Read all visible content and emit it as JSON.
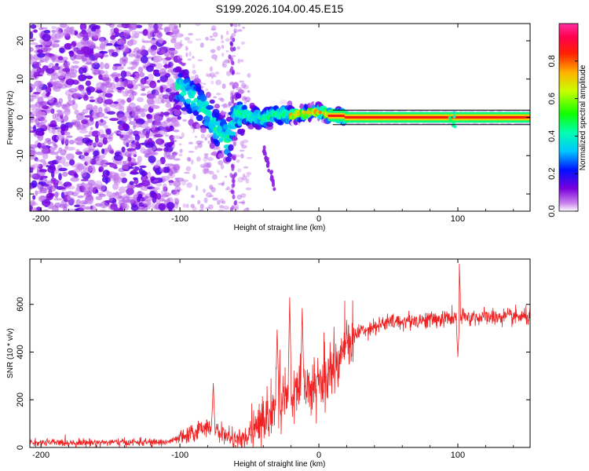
{
  "title": "S199.2026.104.00.45.E15",
  "chart_data": [
    {
      "type": "heatmap",
      "name": "spectrogram",
      "xlabel": "Height of straight line (km)",
      "ylabel": "Frequency (Hz)",
      "xlim": [
        -208,
        152
      ],
      "ylim": [
        -24.5,
        24.5
      ],
      "xticks": [
        -200,
        -100,
        0,
        100
      ],
      "yticks": [
        -20,
        -10,
        0,
        10,
        20
      ],
      "colorbar": {
        "label": "Normalized spectral amplitude",
        "range": [
          0,
          1
        ],
        "ticks": [
          "0.0",
          "0.2",
          "0.4",
          "0.6",
          "0.8"
        ],
        "tick_values": [
          0.0,
          0.2,
          0.4,
          0.6,
          0.8
        ]
      },
      "ridge": [
        {
          "x": -100,
          "y": 8
        },
        {
          "x": -90,
          "y": 5
        },
        {
          "x": -80,
          "y": 1
        },
        {
          "x": -72,
          "y": -4
        },
        {
          "x": -65,
          "y": -6
        },
        {
          "x": -60,
          "y": 1
        },
        {
          "x": -50,
          "y": 0.5
        },
        {
          "x": -40,
          "y": -0.5
        },
        {
          "x": -30,
          "y": 1
        },
        {
          "x": -20,
          "y": 0.5
        },
        {
          "x": -10,
          "y": 1
        },
        {
          "x": 0,
          "y": 1.5
        },
        {
          "x": 10,
          "y": 0.5
        },
        {
          "x": 20,
          "y": 0
        },
        {
          "x": 150,
          "y": 0
        }
      ]
    },
    {
      "type": "line",
      "name": "snr",
      "xlabel": "Height of straight line (km)",
      "ylabel": "SNR (10 * v/v)",
      "xlim": [
        -208,
        152
      ],
      "ylim": [
        0,
        790
      ],
      "xticks": [
        -200,
        -100,
        0,
        100
      ],
      "yticks": [
        0,
        200,
        400,
        600
      ],
      "color": "#ee2222",
      "trend": [
        {
          "x": -208,
          "y": 20
        },
        {
          "x": -110,
          "y": 22
        },
        {
          "x": -95,
          "y": 45
        },
        {
          "x": -80,
          "y": 95
        },
        {
          "x": -70,
          "y": 60
        },
        {
          "x": -60,
          "y": 30
        },
        {
          "x": -50,
          "y": 40
        },
        {
          "x": -40,
          "y": 110
        },
        {
          "x": -30,
          "y": 190
        },
        {
          "x": -20,
          "y": 210
        },
        {
          "x": -10,
          "y": 250
        },
        {
          "x": 0,
          "y": 250
        },
        {
          "x": 10,
          "y": 330
        },
        {
          "x": 20,
          "y": 440
        },
        {
          "x": 30,
          "y": 490
        },
        {
          "x": 50,
          "y": 525
        },
        {
          "x": 90,
          "y": 540
        },
        {
          "x": 100,
          "y": 545
        },
        {
          "x": 152,
          "y": 548
        }
      ],
      "spikes": [
        {
          "x": -76,
          "y": 270
        },
        {
          "x": -30,
          "y": 500
        },
        {
          "x": -21,
          "y": 630
        },
        {
          "x": -12,
          "y": 590
        },
        {
          "x": 101,
          "y": 790
        },
        {
          "x": 100,
          "y": 380
        }
      ]
    }
  ]
}
